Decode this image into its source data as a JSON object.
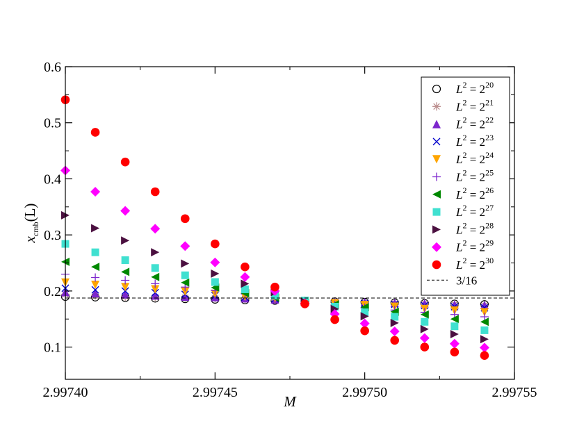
{
  "chart_data": {
    "type": "scatter",
    "title": "",
    "xlabel": "M",
    "ylabel": "x_cmb(L)",
    "ylabel_main": "x",
    "ylabel_sub": "cmb",
    "ylabel_paren": "(L)",
    "xlim": [
      2.9974,
      2.99755
    ],
    "ylim": [
      0.0425,
      0.6
    ],
    "xticks": [
      2.9974,
      2.99745,
      2.9975,
      2.99755
    ],
    "xtick_labels": [
      "2.99740",
      "2.99745",
      "2.99750",
      "2.99755"
    ],
    "yticks": [
      0.1,
      0.2,
      0.3,
      0.4,
      0.5,
      0.6
    ],
    "ytick_labels": [
      "0.1",
      "0.2",
      "0.3",
      "0.4",
      "0.5",
      "0.6"
    ],
    "grid": false,
    "legend_position": "top-right",
    "x": [
      2.9974,
      2.99741,
      2.99742,
      2.99743,
      2.99744,
      2.99745,
      2.99746,
      2.99747,
      2.99748,
      2.99749,
      2.9975,
      2.99751,
      2.99752,
      2.99753,
      2.99754
    ],
    "series": [
      {
        "name": "L^2 = 2^20",
        "base": "2",
        "exp": "20",
        "marker": "circle-open",
        "color": "#000000",
        "values": [
          0.19,
          0.189,
          0.188,
          0.187,
          0.186,
          0.185,
          0.184,
          0.183,
          0.182,
          0.181,
          0.18,
          0.179,
          0.178,
          0.177,
          0.176
        ]
      },
      {
        "name": "L^2 = 2^21",
        "base": "2",
        "exp": "21",
        "marker": "star",
        "color": "#bc8f8f",
        "values": [
          0.194,
          0.192,
          0.19,
          0.189,
          0.188,
          0.187,
          0.186,
          0.184,
          0.182,
          0.181,
          0.179,
          0.178,
          0.177,
          0.176,
          0.174
        ]
      },
      {
        "name": "L^2 = 2^22",
        "base": "2",
        "exp": "22",
        "marker": "triangle-up",
        "color": "#7d26cd",
        "values": [
          0.198,
          0.196,
          0.194,
          0.192,
          0.19,
          0.189,
          0.187,
          0.185,
          0.183,
          0.181,
          0.18,
          0.179,
          0.178,
          0.176,
          0.175
        ]
      },
      {
        "name": "L^2 = 2^23",
        "base": "2",
        "exp": "23",
        "marker": "cross",
        "color": "#0000cc",
        "values": [
          0.205,
          0.202,
          0.2,
          0.197,
          0.194,
          0.192,
          0.189,
          0.186,
          0.183,
          0.18,
          0.178,
          0.176,
          0.174,
          0.172,
          0.17
        ]
      },
      {
        "name": "L^2 = 2^24",
        "base": "2",
        "exp": "24",
        "marker": "triangle-down",
        "color": "#ffa500",
        "values": [
          0.215,
          0.211,
          0.207,
          0.203,
          0.199,
          0.195,
          0.19,
          0.186,
          0.182,
          0.178,
          0.175,
          0.172,
          0.168,
          0.165,
          0.162
        ]
      },
      {
        "name": "L^2 = 2^25",
        "base": "2",
        "exp": "25",
        "marker": "plus",
        "color": "#7d26cd",
        "values": [
          0.23,
          0.224,
          0.219,
          0.213,
          0.207,
          0.201,
          0.195,
          0.188,
          0.181,
          0.175,
          0.17,
          0.166,
          0.162,
          0.158,
          0.154
        ]
      },
      {
        "name": "L^2 = 2^26",
        "base": "2",
        "exp": "26",
        "marker": "triangle-left",
        "color": "#008800",
        "values": [
          0.252,
          0.243,
          0.234,
          0.225,
          0.215,
          0.206,
          0.196,
          0.188,
          0.182,
          0.176,
          0.171,
          0.163,
          0.158,
          0.15,
          0.145
        ]
      },
      {
        "name": "L^2 = 2^27",
        "base": "2",
        "exp": "27",
        "marker": "square",
        "color": "#40e0d0",
        "values": [
          0.284,
          0.269,
          0.255,
          0.241,
          0.228,
          0.216,
          0.203,
          0.192,
          0.183,
          0.172,
          0.162,
          0.154,
          0.145,
          0.137,
          0.13
        ]
      },
      {
        "name": "L^2 = 2^28",
        "base": "2",
        "exp": "28",
        "marker": "triangle-right",
        "color": "#4b1040",
        "values": [
          0.335,
          0.312,
          0.29,
          0.269,
          0.249,
          0.231,
          0.213,
          0.198,
          0.181,
          0.168,
          0.155,
          0.143,
          0.132,
          0.123,
          0.114
        ]
      },
      {
        "name": "L^2 = 2^29",
        "base": "2",
        "exp": "29",
        "marker": "diamond",
        "color": "#ff00ff",
        "values": [
          0.415,
          0.377,
          0.343,
          0.311,
          0.28,
          0.251,
          0.225,
          0.2,
          0.178,
          0.159,
          0.142,
          0.128,
          0.116,
          0.106,
          0.099
        ]
      },
      {
        "name": "L^2 = 2^30",
        "base": "2",
        "exp": "30",
        "marker": "circle-filled",
        "color": "#ff0000",
        "values": [
          0.541,
          0.483,
          0.43,
          0.377,
          0.329,
          0.284,
          0.243,
          0.207,
          0.177,
          0.149,
          0.129,
          0.112,
          0.1,
          0.091,
          0.085
        ]
      }
    ],
    "reference_line": {
      "name": "3/16",
      "value": 0.1875,
      "style": "dashed",
      "color": "#000000"
    }
  }
}
